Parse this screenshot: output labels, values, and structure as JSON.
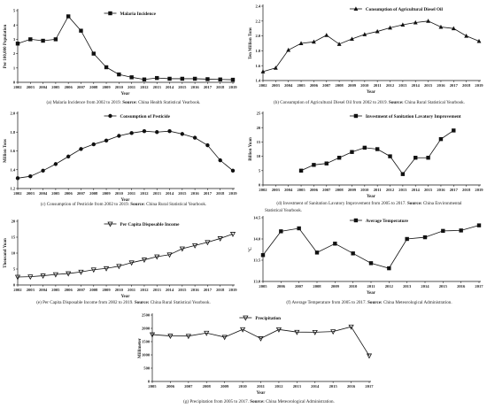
{
  "chart_data": [
    {
      "id": "a",
      "type": "line",
      "x": [
        2002,
        2003,
        2004,
        2005,
        2006,
        2007,
        2008,
        2009,
        2010,
        2011,
        2012,
        2013,
        2014,
        2015,
        2016,
        2017,
        2018,
        2019
      ],
      "series": [
        {
          "name": "Malaria Incidence",
          "marker": "square",
          "values": [
            2.7,
            3.0,
            2.9,
            3.0,
            4.6,
            3.6,
            2.0,
            1.05,
            0.55,
            0.35,
            0.2,
            0.3,
            0.25,
            0.25,
            0.25,
            0.22,
            0.2,
            0.18
          ]
        }
      ],
      "ylim": [
        0,
        5
      ],
      "yticks": [
        "0",
        "1",
        "2",
        "3",
        "4",
        "5"
      ],
      "xlabel": "Year",
      "ylabel": "Per 100,000 Population",
      "caption": {
        "lead": "(a) Malaria Incidence from 2002 to 2019. ",
        "bold": "Source:",
        "tail": " China Health Statistical Yearbook."
      }
    },
    {
      "id": "b",
      "type": "line",
      "x": [
        2002,
        2003,
        2004,
        2005,
        2006,
        2007,
        2008,
        2009,
        2010,
        2011,
        2012,
        2013,
        2014,
        2015,
        2016,
        2017,
        2018,
        2019
      ],
      "series": [
        {
          "name": "Consumption of Agricultural Diesel Oil",
          "marker": "triangle",
          "values": [
            1.52,
            1.57,
            1.81,
            1.9,
            1.92,
            2.01,
            1.89,
            1.96,
            2.02,
            2.06,
            2.11,
            2.15,
            2.18,
            2.2,
            2.12,
            2.1,
            2.0,
            1.93
          ]
        }
      ],
      "ylim": [
        1.4,
        2.4
      ],
      "yticks": [
        "1.4",
        "1.6",
        "1.8",
        "2.0",
        "2.2",
        "2.4"
      ],
      "xlabel": "Year",
      "ylabel": "Ten Million Tons",
      "caption": {
        "lead": "(b) Consumption of Agricultural Diesel Oil from 2002 to 2019. ",
        "bold": "Source:",
        "tail": " China Rural Statistical Yearbook."
      }
    },
    {
      "id": "c",
      "type": "line",
      "x": [
        2002,
        2003,
        2004,
        2005,
        2006,
        2007,
        2008,
        2009,
        2010,
        2011,
        2012,
        2013,
        2014,
        2015,
        2016,
        2017,
        2018,
        2019
      ],
      "series": [
        {
          "name": "Consumption of Pesticide",
          "marker": "circle",
          "values": [
            1.31,
            1.33,
            1.39,
            1.46,
            1.54,
            1.62,
            1.67,
            1.71,
            1.76,
            1.79,
            1.81,
            1.8,
            1.81,
            1.78,
            1.74,
            1.66,
            1.5,
            1.39
          ]
        }
      ],
      "ylim": [
        1.2,
        2.0
      ],
      "yticks": [
        "1.2",
        "1.4",
        "1.6",
        "1.8",
        "2.0"
      ],
      "xlabel": "Year",
      "ylabel": "Million Tons",
      "caption": {
        "lead": "(c) Consumption of Pesticide from 2002 to 2019. ",
        "bold": "Source:",
        "tail": " China Rural Statistical Yearbook."
      }
    },
    {
      "id": "d",
      "type": "line",
      "x": [
        2002,
        2003,
        2004,
        2005,
        2006,
        2007,
        2008,
        2009,
        2010,
        2011,
        2012,
        2013,
        2014,
        2015,
        2016,
        2017,
        2018,
        2019
      ],
      "series": [
        {
          "name": "Investment of Sanitation Lavatory Improvement",
          "marker": "square",
          "values": [
            null,
            null,
            null,
            5.0,
            7.0,
            7.5,
            9.5,
            11.5,
            13.0,
            12.5,
            10.0,
            3.8,
            9.5,
            9.5,
            16.0,
            19.0,
            null,
            null
          ]
        }
      ],
      "ylim": [
        0,
        25
      ],
      "yticks": [
        "0",
        "5",
        "10",
        "15",
        "20",
        "25"
      ],
      "xlabel": "Year",
      "ylabel": "Billion Yuan",
      "caption": {
        "lead": "(d) Investment of Sanitation Lavatory Improvement from 2005 to 2017. ",
        "bold": "Source:",
        "tail": " China Environmental",
        "line2": "Statistical Yearbook."
      }
    },
    {
      "id": "e",
      "type": "line",
      "x": [
        2002,
        2003,
        2004,
        2005,
        2006,
        2007,
        2008,
        2009,
        2010,
        2011,
        2012,
        2013,
        2014,
        2015,
        2016,
        2017,
        2018,
        2019
      ],
      "series": [
        {
          "name": "Per Capita Disposable Income",
          "marker": "triangle-down",
          "values": [
            2.5,
            2.6,
            2.9,
            3.3,
            3.6,
            4.1,
            4.8,
            5.2,
            5.9,
            7.0,
            7.9,
            8.9,
            9.5,
            11.4,
            12.4,
            13.4,
            14.6,
            16.0
          ]
        }
      ],
      "ylim": [
        0,
        20
      ],
      "yticks": [
        "0",
        "5",
        "10",
        "15",
        "20"
      ],
      "xlabel": "Year",
      "ylabel": "Thousand Yuan",
      "caption": {
        "lead": "(e) Per Capita Disposable Income from 2002 to 2019. ",
        "bold": "Source:",
        "tail": " China Rural Statistical Yearbook."
      }
    },
    {
      "id": "f",
      "type": "line",
      "x": [
        2005,
        2006,
        2007,
        2008,
        2009,
        2010,
        2011,
        2012,
        2013,
        2014,
        2015,
        2016,
        2017
      ],
      "series": [
        {
          "name": "Average Temperature",
          "marker": "square",
          "values": [
            13.62,
            14.18,
            14.25,
            13.68,
            13.89,
            13.66,
            13.43,
            13.31,
            14.0,
            14.04,
            14.19,
            14.2,
            14.32
          ]
        }
      ],
      "ylim": [
        13.0,
        14.5
      ],
      "yticks": [
        "13.0",
        "13.5",
        "14.0",
        "14.5"
      ],
      "xlabel": "Year",
      "ylabel": "°C",
      "caption": {
        "lead": "(f) Average Temperature from 2005 to 2017. ",
        "bold": "Source:",
        "tail": " China Meteorological Administration."
      }
    },
    {
      "id": "g",
      "type": "line",
      "x": [
        2005,
        2006,
        2007,
        2008,
        2009,
        2010,
        2011,
        2012,
        2013,
        2014,
        2015,
        2016,
        2017
      ],
      "series": [
        {
          "name": "Precipitation",
          "marker": "triangle-down",
          "values": [
            1765,
            1715,
            1710,
            1825,
            1670,
            1960,
            1620,
            1955,
            1860,
            1855,
            1880,
            2060,
            970
          ]
        }
      ],
      "ylim": [
        0,
        2500
      ],
      "yticks": [
        "0",
        "500",
        "1000",
        "1500",
        "2000",
        "2500"
      ],
      "xlabel": "Year",
      "ylabel": "Millimeter",
      "caption": {
        "lead": "(g) Precipitation from 2005 to 2017. ",
        "bold": "Source:",
        "tail": " China Meteorological Administration."
      }
    }
  ]
}
